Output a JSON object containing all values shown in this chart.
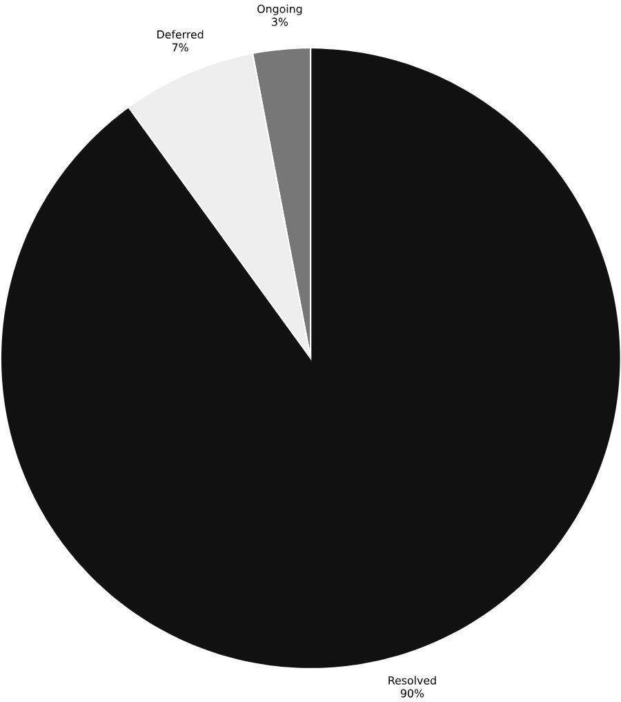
{
  "chart_data": {
    "type": "pie",
    "categories": [
      "Ongoing",
      "Deferred",
      "Resolved"
    ],
    "values": [
      3,
      7,
      90
    ],
    "value_labels": [
      "3%",
      "7%",
      "90%"
    ],
    "colors": [
      "#777777",
      "#eeeeee",
      "#111111"
    ]
  }
}
